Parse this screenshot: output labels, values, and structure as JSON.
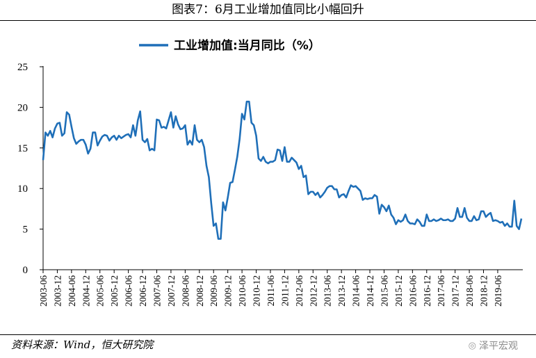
{
  "figure_title": "图表7：6月工业增加值同比小幅回升",
  "source_text": "资料来源：Wind，恒大研究院",
  "brand": {
    "icon": "wechat-icon",
    "text": "泽平宏观"
  },
  "colors": {
    "series": "#1f6fb8",
    "axis": "#000000"
  },
  "chart_data": {
    "type": "line",
    "title": "",
    "xlabel": "",
    "ylabel": "",
    "ylim": [
      0,
      25
    ],
    "yticks": [
      0,
      5,
      10,
      15,
      20,
      25
    ],
    "grid": false,
    "legend_position": "top-center",
    "x_start": "2003-06",
    "x_end": "2019-06",
    "x_tick_labels": [
      "2003-06",
      "2003-12",
      "2004-06",
      "2004-12",
      "2005-06",
      "2005-12",
      "2006-06",
      "2006-12",
      "2007-06",
      "2007-12",
      "2008-06",
      "2008-12",
      "2009-06",
      "2009-12",
      "2010-06",
      "2010-12",
      "2011-06",
      "2011-12",
      "2012-06",
      "2012-12",
      "2013-06",
      "2013-12",
      "2014-06",
      "2014-12",
      "2015-06",
      "2015-12",
      "2016-06",
      "2016-12",
      "2017-06",
      "2017-12",
      "2018-06",
      "2018-12",
      "2019-06"
    ],
    "series": [
      {
        "name": "工业增加值:当月同比（%）",
        "values": [
          13.5,
          16.9,
          16.5,
          17.1,
          16.3,
          17.4,
          18.0,
          18.1,
          16.5,
          16.8,
          19.4,
          19.1,
          17.6,
          16.2,
          15.5,
          15.8,
          16.0,
          16.0,
          15.4,
          14.3,
          14.9,
          16.9,
          16.9,
          15.3,
          15.9,
          16.4,
          16.6,
          16.5,
          15.9,
          16.3,
          16.5,
          16.0,
          16.5,
          16.2,
          16.4,
          16.6,
          16.7,
          16.3,
          17.8,
          16.5,
          18.4,
          19.5,
          16.0,
          15.7,
          16.1,
          14.7,
          14.9,
          14.7,
          18.5,
          18.4,
          17.5,
          17.6,
          17.4,
          18.4,
          19.4,
          17.5,
          18.9,
          17.9,
          17.3,
          17.4,
          17.8,
          15.4,
          15.9,
          15.4,
          17.8,
          16.0,
          15.7,
          16.0,
          15.1,
          12.8,
          11.4,
          8.2,
          5.4,
          5.7,
          3.8,
          3.8,
          8.3,
          7.3,
          8.9,
          10.7,
          10.8,
          12.3,
          13.9,
          16.1,
          19.2,
          18.5,
          20.7,
          20.7,
          18.1,
          17.8,
          16.5,
          13.7,
          13.4,
          13.9,
          13.3,
          13.1,
          13.3,
          13.3,
          13.5,
          14.8,
          14.7,
          13.4,
          15.1,
          13.3,
          13.3,
          13.8,
          13.5,
          13.2,
          12.4,
          12.8,
          11.4,
          11.6,
          9.3,
          9.6,
          9.6,
          9.2,
          9.5,
          8.9,
          9.2,
          9.6,
          10.1,
          10.3,
          10.3,
          9.9,
          9.9,
          8.9,
          9.2,
          9.3,
          8.9,
          9.7,
          10.4,
          10.2,
          10.3,
          10.0,
          9.7,
          8.6,
          8.8,
          8.7,
          8.8,
          8.8,
          9.2,
          9.0,
          6.9,
          8.0,
          7.7,
          7.2,
          7.9,
          6.8,
          6.4,
          5.6,
          6.1,
          5.9,
          6.1,
          6.8,
          6.0,
          5.7,
          5.7,
          5.6,
          6.2,
          5.9,
          5.4,
          5.4,
          6.8,
          6.0,
          6.0,
          6.2,
          6.0,
          6.1,
          6.3,
          6.1,
          6.1,
          6.2,
          6.0,
          6.0,
          6.3,
          7.6,
          6.5,
          6.5,
          7.6,
          6.4,
          6.0,
          6.0,
          6.6,
          6.1,
          6.2,
          7.2,
          7.2,
          6.5,
          6.8,
          7.0,
          6.0,
          6.1,
          6.0,
          5.8,
          5.9,
          5.4,
          5.7,
          5.3,
          5.3,
          8.5,
          5.4,
          5.0,
          6.3
        ]
      }
    ]
  }
}
